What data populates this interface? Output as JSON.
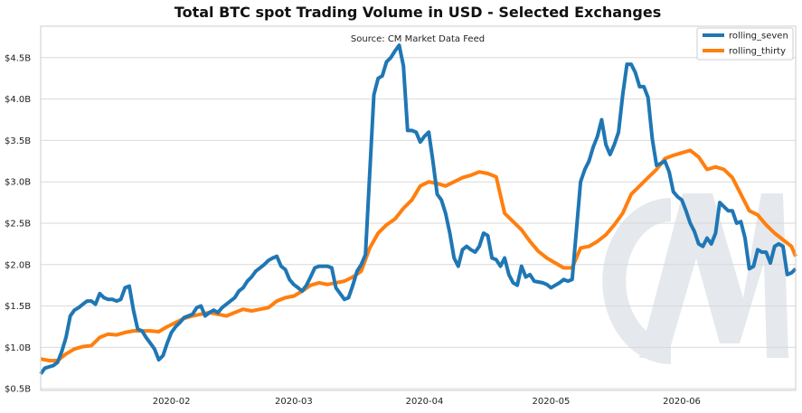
{
  "chart_data": {
    "type": "line",
    "title": "Total BTC spot Trading Volume in USD - Selected Exchanges",
    "subtitle": "Source: CM Market Data Feed",
    "watermark": "CM",
    "xlabel": "",
    "ylabel": "",
    "xlim": [
      "2020-01-01",
      "2020-06-28"
    ],
    "ylim": [
      0.48,
      4.88
    ],
    "x_ticks": [
      {
        "date": "2020-02-01",
        "label": "2020-02"
      },
      {
        "date": "2020-03-01",
        "label": "2020-03"
      },
      {
        "date": "2020-04-01",
        "label": "2020-04"
      },
      {
        "date": "2020-05-01",
        "label": "2020-05"
      },
      {
        "date": "2020-06-01",
        "label": "2020-06"
      }
    ],
    "y_ticks": [
      {
        "value": 0.5,
        "label": "$0.5B"
      },
      {
        "value": 1.0,
        "label": "$1.0B"
      },
      {
        "value": 1.5,
        "label": "$1.5B"
      },
      {
        "value": 2.0,
        "label": "$2.0B"
      },
      {
        "value": 2.5,
        "label": "$2.5B"
      },
      {
        "value": 3.0,
        "label": "$3.0B"
      },
      {
        "value": 3.5,
        "label": "$3.5B"
      },
      {
        "value": 4.0,
        "label": "$4.0B"
      },
      {
        "value": 4.5,
        "label": "$4.5B"
      }
    ],
    "grid": "horizontal",
    "legend_position": "top-right",
    "series": [
      {
        "name": "rolling_seven",
        "color": "#1f77b4",
        "points": [
          [
            "2020-01-01",
            0.68
          ],
          [
            "2020-01-02",
            0.75
          ],
          [
            "2020-01-04",
            0.78
          ],
          [
            "2020-01-05",
            0.82
          ],
          [
            "2020-01-06",
            0.95
          ],
          [
            "2020-01-07",
            1.12
          ],
          [
            "2020-01-08",
            1.38
          ],
          [
            "2020-01-09",
            1.45
          ],
          [
            "2020-01-10",
            1.48
          ],
          [
            "2020-01-11",
            1.52
          ],
          [
            "2020-01-12",
            1.56
          ],
          [
            "2020-01-13",
            1.56
          ],
          [
            "2020-01-14",
            1.52
          ],
          [
            "2020-01-15",
            1.65
          ],
          [
            "2020-01-16",
            1.6
          ],
          [
            "2020-01-17",
            1.58
          ],
          [
            "2020-01-18",
            1.58
          ],
          [
            "2020-01-19",
            1.56
          ],
          [
            "2020-01-20",
            1.58
          ],
          [
            "2020-01-21",
            1.72
          ],
          [
            "2020-01-22",
            1.74
          ],
          [
            "2020-01-23",
            1.45
          ],
          [
            "2020-01-24",
            1.22
          ],
          [
            "2020-01-25",
            1.2
          ],
          [
            "2020-01-26",
            1.12
          ],
          [
            "2020-01-27",
            1.05
          ],
          [
            "2020-01-28",
            0.98
          ],
          [
            "2020-01-29",
            0.85
          ],
          [
            "2020-01-30",
            0.9
          ],
          [
            "2020-01-31",
            1.05
          ],
          [
            "2020-02-01",
            1.18
          ],
          [
            "2020-02-02",
            1.25
          ],
          [
            "2020-02-03",
            1.3
          ],
          [
            "2020-02-04",
            1.36
          ],
          [
            "2020-02-05",
            1.38
          ],
          [
            "2020-02-06",
            1.4
          ],
          [
            "2020-02-07",
            1.48
          ],
          [
            "2020-02-08",
            1.5
          ],
          [
            "2020-02-09",
            1.38
          ],
          [
            "2020-02-10",
            1.42
          ],
          [
            "2020-02-11",
            1.45
          ],
          [
            "2020-02-12",
            1.42
          ],
          [
            "2020-02-13",
            1.48
          ],
          [
            "2020-02-14",
            1.52
          ],
          [
            "2020-02-15",
            1.56
          ],
          [
            "2020-02-16",
            1.6
          ],
          [
            "2020-02-17",
            1.68
          ],
          [
            "2020-02-18",
            1.72
          ],
          [
            "2020-02-19",
            1.8
          ],
          [
            "2020-02-20",
            1.85
          ],
          [
            "2020-02-21",
            1.92
          ],
          [
            "2020-02-22",
            1.96
          ],
          [
            "2020-02-23",
            2.0
          ],
          [
            "2020-02-24",
            2.05
          ],
          [
            "2020-02-25",
            2.08
          ],
          [
            "2020-02-26",
            2.1
          ],
          [
            "2020-02-27",
            1.98
          ],
          [
            "2020-02-28",
            1.94
          ],
          [
            "2020-02-29",
            1.82
          ],
          [
            "2020-03-01",
            1.76
          ],
          [
            "2020-03-02",
            1.72
          ],
          [
            "2020-03-03",
            1.68
          ],
          [
            "2020-03-04",
            1.75
          ],
          [
            "2020-03-05",
            1.85
          ],
          [
            "2020-03-06",
            1.96
          ],
          [
            "2020-03-07",
            1.98
          ],
          [
            "2020-03-08",
            1.98
          ],
          [
            "2020-03-09",
            1.98
          ],
          [
            "2020-03-10",
            1.96
          ],
          [
            "2020-03-11",
            1.72
          ],
          [
            "2020-03-12",
            1.65
          ],
          [
            "2020-03-13",
            1.58
          ],
          [
            "2020-03-14",
            1.6
          ],
          [
            "2020-03-15",
            1.75
          ],
          [
            "2020-03-16",
            1.92
          ],
          [
            "2020-03-17",
            2.0
          ],
          [
            "2020-03-18",
            2.12
          ],
          [
            "2020-03-19",
            3.1
          ],
          [
            "2020-03-20",
            4.05
          ],
          [
            "2020-03-21",
            4.25
          ],
          [
            "2020-03-22",
            4.28
          ],
          [
            "2020-03-23",
            4.45
          ],
          [
            "2020-03-24",
            4.5
          ],
          [
            "2020-03-25",
            4.58
          ],
          [
            "2020-03-26",
            4.65
          ],
          [
            "2020-03-27",
            4.4
          ],
          [
            "2020-03-28",
            3.62
          ],
          [
            "2020-03-29",
            3.62
          ],
          [
            "2020-03-30",
            3.6
          ],
          [
            "2020-03-31",
            3.48
          ],
          [
            "2020-04-01",
            3.55
          ],
          [
            "2020-04-02",
            3.6
          ],
          [
            "2020-04-03",
            3.25
          ],
          [
            "2020-04-04",
            2.85
          ],
          [
            "2020-04-05",
            2.78
          ],
          [
            "2020-04-06",
            2.62
          ],
          [
            "2020-04-07",
            2.38
          ],
          [
            "2020-04-08",
            2.08
          ],
          [
            "2020-04-09",
            1.98
          ],
          [
            "2020-04-10",
            2.18
          ],
          [
            "2020-04-11",
            2.22
          ],
          [
            "2020-04-12",
            2.18
          ],
          [
            "2020-04-13",
            2.15
          ],
          [
            "2020-04-14",
            2.22
          ],
          [
            "2020-04-15",
            2.38
          ],
          [
            "2020-04-16",
            2.35
          ],
          [
            "2020-04-17",
            2.08
          ],
          [
            "2020-04-18",
            2.06
          ],
          [
            "2020-04-19",
            1.98
          ],
          [
            "2020-04-20",
            2.08
          ],
          [
            "2020-04-21",
            1.88
          ],
          [
            "2020-04-22",
            1.78
          ],
          [
            "2020-04-23",
            1.75
          ],
          [
            "2020-04-24",
            1.98
          ],
          [
            "2020-04-25",
            1.85
          ],
          [
            "2020-04-26",
            1.88
          ],
          [
            "2020-04-27",
            1.8
          ],
          [
            "2020-04-28",
            1.79
          ],
          [
            "2020-04-29",
            1.78
          ],
          [
            "2020-04-30",
            1.76
          ],
          [
            "2020-05-01",
            1.72
          ],
          [
            "2020-05-02",
            1.75
          ],
          [
            "2020-05-03",
            1.78
          ],
          [
            "2020-05-04",
            1.82
          ],
          [
            "2020-05-05",
            1.8
          ],
          [
            "2020-05-06",
            1.82
          ],
          [
            "2020-05-07",
            2.4
          ],
          [
            "2020-05-08",
            3.0
          ],
          [
            "2020-05-09",
            3.15
          ],
          [
            "2020-05-10",
            3.25
          ],
          [
            "2020-05-11",
            3.42
          ],
          [
            "2020-05-12",
            3.55
          ],
          [
            "2020-05-13",
            3.75
          ],
          [
            "2020-05-14",
            3.45
          ],
          [
            "2020-05-15",
            3.33
          ],
          [
            "2020-05-16",
            3.45
          ],
          [
            "2020-05-17",
            3.6
          ],
          [
            "2020-05-18",
            4.05
          ],
          [
            "2020-05-19",
            4.42
          ],
          [
            "2020-05-20",
            4.42
          ],
          [
            "2020-05-21",
            4.32
          ],
          [
            "2020-05-22",
            4.15
          ],
          [
            "2020-05-23",
            4.15
          ],
          [
            "2020-05-24",
            4.02
          ],
          [
            "2020-05-25",
            3.52
          ],
          [
            "2020-05-26",
            3.2
          ],
          [
            "2020-05-27",
            3.22
          ],
          [
            "2020-05-28",
            3.25
          ],
          [
            "2020-05-29",
            3.12
          ],
          [
            "2020-05-30",
            2.88
          ],
          [
            "2020-05-31",
            2.82
          ],
          [
            "2020-06-01",
            2.78
          ],
          [
            "2020-06-02",
            2.65
          ],
          [
            "2020-06-03",
            2.5
          ],
          [
            "2020-06-04",
            2.4
          ],
          [
            "2020-06-05",
            2.25
          ],
          [
            "2020-06-06",
            2.22
          ],
          [
            "2020-06-07",
            2.32
          ],
          [
            "2020-06-08",
            2.25
          ],
          [
            "2020-06-09",
            2.38
          ],
          [
            "2020-06-10",
            2.75
          ],
          [
            "2020-06-11",
            2.7
          ],
          [
            "2020-06-12",
            2.65
          ],
          [
            "2020-06-13",
            2.65
          ],
          [
            "2020-06-14",
            2.5
          ],
          [
            "2020-06-15",
            2.52
          ],
          [
            "2020-06-16",
            2.32
          ],
          [
            "2020-06-17",
            1.95
          ],
          [
            "2020-06-18",
            1.98
          ],
          [
            "2020-06-19",
            2.18
          ],
          [
            "2020-06-20",
            2.15
          ],
          [
            "2020-06-21",
            2.15
          ],
          [
            "2020-06-22",
            2.02
          ],
          [
            "2020-06-23",
            2.22
          ],
          [
            "2020-06-24",
            2.25
          ],
          [
            "2020-06-25",
            2.22
          ],
          [
            "2020-06-26",
            1.88
          ],
          [
            "2020-06-27",
            1.9
          ],
          [
            "2020-06-28",
            1.95
          ]
        ]
      },
      {
        "name": "rolling_thirty",
        "color": "#ff7f0e",
        "points": [
          [
            "2020-01-01",
            0.86
          ],
          [
            "2020-01-03",
            0.84
          ],
          [
            "2020-01-05",
            0.84
          ],
          [
            "2020-01-07",
            0.92
          ],
          [
            "2020-01-09",
            0.98
          ],
          [
            "2020-01-11",
            1.01
          ],
          [
            "2020-01-13",
            1.02
          ],
          [
            "2020-01-15",
            1.12
          ],
          [
            "2020-01-17",
            1.16
          ],
          [
            "2020-01-19",
            1.15
          ],
          [
            "2020-01-21",
            1.18
          ],
          [
            "2020-01-23",
            1.2
          ],
          [
            "2020-01-25",
            1.2
          ],
          [
            "2020-01-27",
            1.2
          ],
          [
            "2020-01-29",
            1.19
          ],
          [
            "2020-01-31",
            1.25
          ],
          [
            "2020-02-02",
            1.3
          ],
          [
            "2020-02-04",
            1.35
          ],
          [
            "2020-02-06",
            1.38
          ],
          [
            "2020-02-08",
            1.4
          ],
          [
            "2020-02-10",
            1.42
          ],
          [
            "2020-02-12",
            1.4
          ],
          [
            "2020-02-14",
            1.38
          ],
          [
            "2020-02-16",
            1.42
          ],
          [
            "2020-02-18",
            1.46
          ],
          [
            "2020-02-20",
            1.44
          ],
          [
            "2020-02-22",
            1.46
          ],
          [
            "2020-02-24",
            1.48
          ],
          [
            "2020-02-26",
            1.56
          ],
          [
            "2020-02-28",
            1.6
          ],
          [
            "2020-03-01",
            1.62
          ],
          [
            "2020-03-03",
            1.68
          ],
          [
            "2020-03-05",
            1.75
          ],
          [
            "2020-03-07",
            1.78
          ],
          [
            "2020-03-09",
            1.76
          ],
          [
            "2020-03-11",
            1.78
          ],
          [
            "2020-03-13",
            1.8
          ],
          [
            "2020-03-15",
            1.85
          ],
          [
            "2020-03-17",
            1.92
          ],
          [
            "2020-03-19",
            2.2
          ],
          [
            "2020-03-21",
            2.38
          ],
          [
            "2020-03-23",
            2.48
          ],
          [
            "2020-03-25",
            2.55
          ],
          [
            "2020-03-27",
            2.68
          ],
          [
            "2020-03-29",
            2.78
          ],
          [
            "2020-03-31",
            2.95
          ],
          [
            "2020-04-02",
            3.0
          ],
          [
            "2020-04-04",
            2.98
          ],
          [
            "2020-04-06",
            2.95
          ],
          [
            "2020-04-08",
            3.0
          ],
          [
            "2020-04-10",
            3.05
          ],
          [
            "2020-04-12",
            3.08
          ],
          [
            "2020-04-14",
            3.12
          ],
          [
            "2020-04-16",
            3.1
          ],
          [
            "2020-04-18",
            3.06
          ],
          [
            "2020-04-20",
            2.62
          ],
          [
            "2020-04-22",
            2.52
          ],
          [
            "2020-04-24",
            2.42
          ],
          [
            "2020-04-26",
            2.28
          ],
          [
            "2020-04-28",
            2.16
          ],
          [
            "2020-04-30",
            2.08
          ],
          [
            "2020-05-02",
            2.02
          ],
          [
            "2020-05-04",
            1.96
          ],
          [
            "2020-05-06",
            1.96
          ],
          [
            "2020-05-08",
            2.2
          ],
          [
            "2020-05-10",
            2.22
          ],
          [
            "2020-05-12",
            2.28
          ],
          [
            "2020-05-14",
            2.36
          ],
          [
            "2020-05-16",
            2.48
          ],
          [
            "2020-05-18",
            2.62
          ],
          [
            "2020-05-20",
            2.85
          ],
          [
            "2020-05-22",
            2.95
          ],
          [
            "2020-05-24",
            3.05
          ],
          [
            "2020-05-26",
            3.15
          ],
          [
            "2020-05-28",
            3.28
          ],
          [
            "2020-05-30",
            3.32
          ],
          [
            "2020-06-01",
            3.35
          ],
          [
            "2020-06-03",
            3.38
          ],
          [
            "2020-06-05",
            3.3
          ],
          [
            "2020-06-07",
            3.15
          ],
          [
            "2020-06-09",
            3.18
          ],
          [
            "2020-06-11",
            3.15
          ],
          [
            "2020-06-13",
            3.05
          ],
          [
            "2020-06-15",
            2.85
          ],
          [
            "2020-06-17",
            2.65
          ],
          [
            "2020-06-19",
            2.6
          ],
          [
            "2020-06-21",
            2.48
          ],
          [
            "2020-06-23",
            2.38
          ],
          [
            "2020-06-25",
            2.3
          ],
          [
            "2020-06-27",
            2.22
          ],
          [
            "2020-06-28",
            2.1
          ]
        ]
      }
    ]
  }
}
